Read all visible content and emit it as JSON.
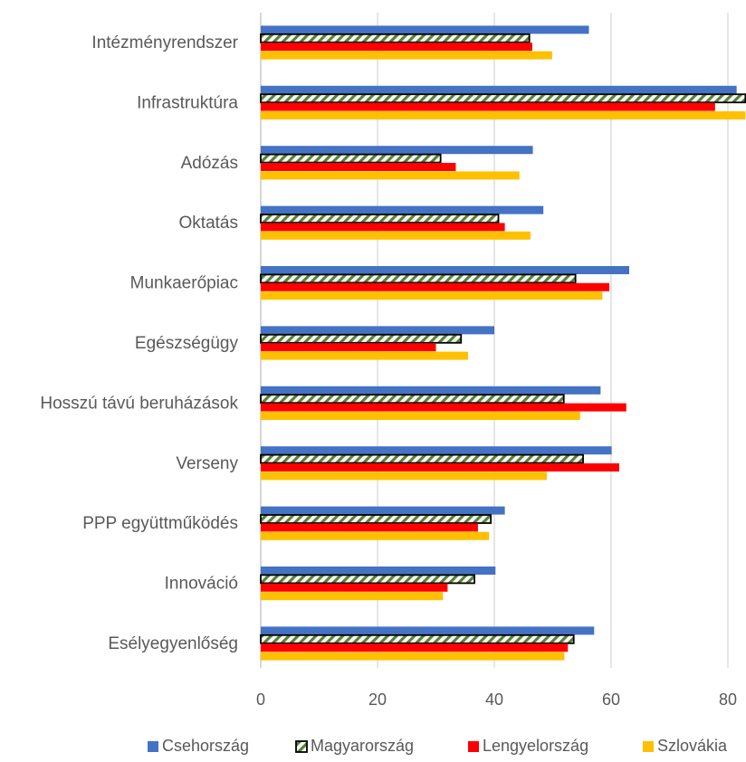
{
  "chart_data": {
    "type": "bar",
    "orientation": "horizontal",
    "categories": [
      "Intézményrendszer",
      "Infrastruktúra",
      "Adózás",
      "Oktatás",
      "Munkaerőpiac",
      "Egészségügy",
      "Hosszú távú beruházások",
      "Verseny",
      "PPP együttműködés",
      "Innováció",
      "Esélyegyenlőség"
    ],
    "series": [
      {
        "name": "Csehország",
        "color": "#4472C4",
        "pattern": "solid",
        "values": [
          56.2,
          81.5,
          46.6,
          48.4,
          63.1,
          40.0,
          58.2,
          60.1,
          41.8,
          40.2,
          57.1
        ]
      },
      {
        "name": "Magyarország",
        "color": "#548235",
        "pattern": "diagonal-hatch-outlined",
        "values": [
          46.0,
          83.0,
          30.8,
          40.7,
          53.9,
          34.3,
          51.9,
          55.2,
          39.4,
          36.6,
          53.6
        ]
      },
      {
        "name": "Lengyelország",
        "color": "#FF0000",
        "pattern": "solid",
        "values": [
          46.5,
          77.8,
          33.4,
          41.8,
          59.7,
          30.0,
          62.6,
          61.4,
          37.2,
          32.0,
          52.6
        ]
      },
      {
        "name": "Szlovákia",
        "color": "#FFC000",
        "pattern": "solid",
        "values": [
          49.9,
          83.0,
          44.3,
          46.2,
          58.5,
          35.5,
          54.7,
          49.0,
          39.1,
          31.2,
          52.0
        ]
      }
    ],
    "x_ticks": [
      "0",
      "20",
      "40",
      "60",
      "80"
    ],
    "xlim": [
      0,
      83
    ],
    "grid": "vertical",
    "legend_position": "bottom",
    "title": "",
    "xlabel": "",
    "ylabel": ""
  }
}
